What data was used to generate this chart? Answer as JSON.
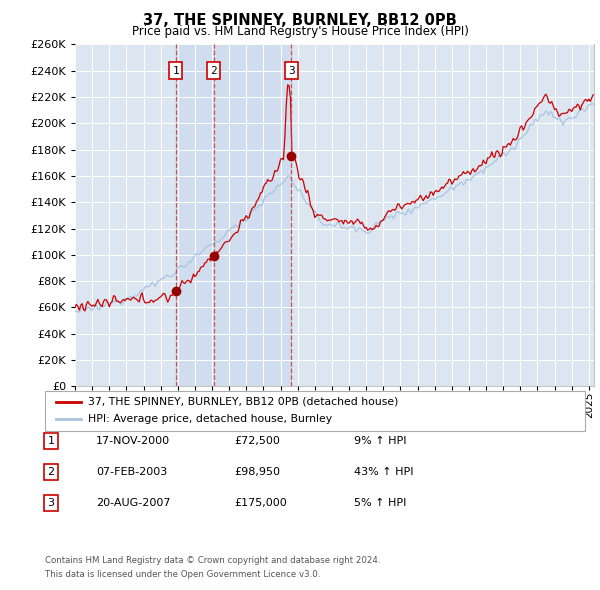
{
  "title": "37, THE SPINNEY, BURNLEY, BB12 0PB",
  "subtitle": "Price paid vs. HM Land Registry's House Price Index (HPI)",
  "ylim": [
    0,
    260000
  ],
  "yticks": [
    0,
    20000,
    40000,
    60000,
    80000,
    100000,
    120000,
    140000,
    160000,
    180000,
    200000,
    220000,
    240000,
    260000
  ],
  "xlim_start": 1995.0,
  "xlim_end": 2025.3,
  "legend_line1": "37, THE SPINNEY, BURNLEY, BB12 0PB (detached house)",
  "legend_line2": "HPI: Average price, detached house, Burnley",
  "sales": [
    {
      "num": 1,
      "date": "17-NOV-2000",
      "price": 72500,
      "pct": "9%",
      "dir": "↑",
      "year": 2000.88
    },
    {
      "num": 2,
      "date": "07-FEB-2003",
      "price": 98950,
      "pct": "43%",
      "dir": "↑",
      "year": 2003.1
    },
    {
      "num": 3,
      "date": "20-AUG-2007",
      "price": 175000,
      "pct": "5%",
      "dir": "↑",
      "year": 2007.63
    }
  ],
  "footnote1": "Contains HM Land Registry data © Crown copyright and database right 2024.",
  "footnote2": "This data is licensed under the Open Government Licence v3.0.",
  "plot_bg_color": "#dce6f1",
  "shade_color": "#c8d8ed",
  "grid_color": "#ffffff",
  "line_color_red": "#cc0000",
  "line_color_blue": "#aac4e0",
  "sale_marker_color": "#990000"
}
